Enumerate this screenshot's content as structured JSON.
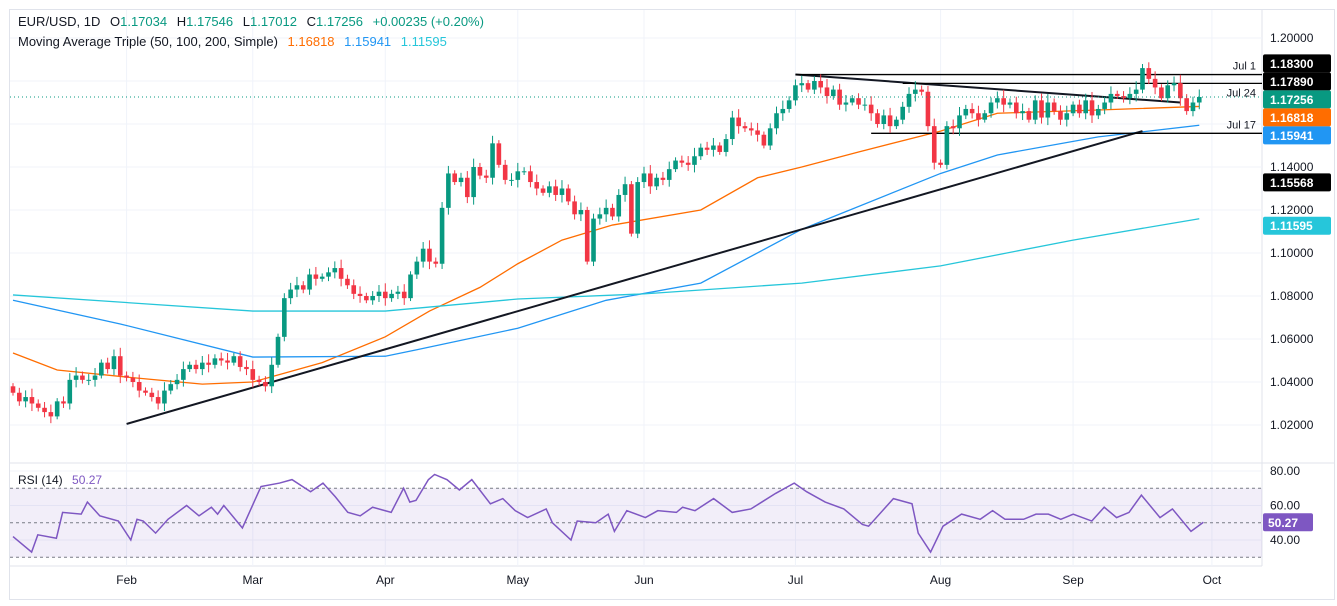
{
  "header": {
    "symbol": "EUR/USD, 1D",
    "open_label": "O",
    "open": "1.17034",
    "high_label": "H",
    "high": "1.17546",
    "low_label": "L",
    "low": "1.17012",
    "close_label": "C",
    "close": "1.17256",
    "change": "+0.00235 (+0.20%)",
    "ma_label": "Moving Average Triple (50, 100, 200, Simple)",
    "ma50": "1.16818",
    "ma100": "1.15941",
    "ma200": "1.11595"
  },
  "rsi_legend": {
    "label": "RSI (14)",
    "value": "50.27"
  },
  "colors": {
    "up": "#089981",
    "down": "#f23645",
    "ma50": "#ff6d00",
    "ma100": "#2196f3",
    "ma200": "#26c6da",
    "rsi": "#7e57c2",
    "trendline": "#131722"
  },
  "chart_data": [
    {
      "type": "candlestick",
      "title": "EUR/USD, 1D",
      "ylim": [
        1.0,
        1.21
      ],
      "grid": true,
      "y_ticks": [
        "1.20000",
        "1.14000",
        "1.12000",
        "1.10000",
        "1.08000",
        "1.06000",
        "1.04000",
        "1.02000"
      ],
      "x_months": [
        {
          "label": "Feb",
          "bar": 18
        },
        {
          "label": "Mar",
          "bar": 38
        },
        {
          "label": "Apr",
          "bar": 59
        },
        {
          "label": "May",
          "bar": 80
        },
        {
          "label": "Jun",
          "bar": 100
        },
        {
          "label": "Jul",
          "bar": 124
        },
        {
          "label": "Aug",
          "bar": 147
        },
        {
          "label": "Sep",
          "bar": 168
        },
        {
          "label": "Oct",
          "bar": 190
        }
      ],
      "first_open": 1.038,
      "closes": [
        1.035,
        1.031,
        1.033,
        1.03,
        1.028,
        1.026,
        1.024,
        1.031,
        1.03,
        1.041,
        1.043,
        1.041,
        1.041,
        1.043,
        1.049,
        1.046,
        1.052,
        1.043,
        1.042,
        1.04,
        1.036,
        1.035,
        1.033,
        1.03,
        1.036,
        1.039,
        1.041,
        1.046,
        1.048,
        1.046,
        1.049,
        1.048,
        1.051,
        1.05,
        1.049,
        1.052,
        1.047,
        1.046,
        1.041,
        1.04,
        1.038,
        1.048,
        1.061,
        1.079,
        1.083,
        1.085,
        1.083,
        1.09,
        1.088,
        1.089,
        1.091,
        1.093,
        1.088,
        1.085,
        1.081,
        1.08,
        1.078,
        1.08,
        1.082,
        1.079,
        1.081,
        1.082,
        1.079,
        1.09,
        1.096,
        1.102,
        1.096,
        1.095,
        1.121,
        1.137,
        1.133,
        1.135,
        1.126,
        1.14,
        1.136,
        1.135,
        1.151,
        1.141,
        1.134,
        1.134,
        1.138,
        1.138,
        1.133,
        1.13,
        1.128,
        1.131,
        1.127,
        1.13,
        1.124,
        1.118,
        1.12,
        1.096,
        1.116,
        1.118,
        1.121,
        1.117,
        1.127,
        1.132,
        1.109,
        1.133,
        1.137,
        1.131,
        1.135,
        1.134,
        1.139,
        1.143,
        1.142,
        1.141,
        1.145,
        1.149,
        1.148,
        1.15,
        1.147,
        1.153,
        1.163,
        1.159,
        1.158,
        1.157,
        1.155,
        1.15,
        1.158,
        1.165,
        1.167,
        1.171,
        1.178,
        1.179,
        1.176,
        1.18,
        1.177,
        1.173,
        1.176,
        1.169,
        1.17,
        1.172,
        1.169,
        1.169,
        1.165,
        1.16,
        1.164,
        1.159,
        1.162,
        1.168,
        1.174,
        1.176,
        1.175,
        1.159,
        1.142,
        1.141,
        1.159,
        1.158,
        1.164,
        1.167,
        1.165,
        1.162,
        1.165,
        1.17,
        1.172,
        1.169,
        1.17,
        1.165,
        1.166,
        1.162,
        1.171,
        1.163,
        1.17,
        1.166,
        1.162,
        1.165,
        1.169,
        1.165,
        1.171,
        1.164,
        1.167,
        1.17,
        1.174,
        1.173,
        1.172,
        1.174,
        1.176,
        1.186,
        1.181,
        1.177,
        1.172,
        1.178,
        1.179,
        1.172,
        1.166,
        1.17,
        1.17256
      ],
      "moving_averages": [
        {
          "name": "SMA 50",
          "value": "1.16818",
          "color": "#ff6d00",
          "points": [
            [
              0,
              1.0535
            ],
            [
              7,
              1.0456
            ],
            [
              18,
              1.0423
            ],
            [
              30,
              1.039
            ],
            [
              38,
              1.04
            ],
            [
              49,
              1.049
            ],
            [
              59,
              1.061
            ],
            [
              66,
              1.073
            ],
            [
              74,
              1.084
            ],
            [
              80,
              1.095
            ],
            [
              87,
              1.106
            ],
            [
              95,
              1.113
            ],
            [
              109,
              1.12
            ],
            [
              118,
              1.135
            ],
            [
              125,
              1.14
            ],
            [
              134,
              1.147
            ],
            [
              147,
              1.1567
            ],
            [
              156,
              1.165
            ],
            [
              172,
              1.1665
            ],
            [
              188,
              1.16818
            ]
          ]
        },
        {
          "name": "SMA 100",
          "value": "1.15941",
          "color": "#2196f3",
          "points": [
            [
              0,
              1.078
            ],
            [
              17,
              1.067
            ],
            [
              38,
              1.0516
            ],
            [
              59,
              1.052
            ],
            [
              64,
              1.055
            ],
            [
              80,
              1.065
            ],
            [
              94,
              1.078
            ],
            [
              109,
              1.086
            ],
            [
              125,
              1.111
            ],
            [
              147,
              1.137
            ],
            [
              156,
              1.1456
            ],
            [
              172,
              1.154
            ],
            [
              188,
              1.15941
            ]
          ]
        },
        {
          "name": "SMA 200",
          "value": "1.11595",
          "color": "#26c6da",
          "points": [
            [
              0,
              1.0805
            ],
            [
              38,
              1.073
            ],
            [
              59,
              1.073
            ],
            [
              80,
              1.0786
            ],
            [
              100,
              1.081
            ],
            [
              125,
              1.086
            ],
            [
              147,
              1.094
            ],
            [
              168,
              1.106
            ],
            [
              188,
              1.11595
            ]
          ]
        }
      ],
      "trendlines": [
        {
          "from": [
            18,
            1.0205
          ],
          "to": [
            179,
            1.1567
          ]
        },
        {
          "from": [
            124,
            1.183
          ],
          "to": [
            185,
            1.17
          ]
        }
      ],
      "levels": [
        {
          "label": "Jul 1",
          "price": 1.183,
          "tag": "1.18300",
          "from_bar": 124
        },
        {
          "label": "Jul 24",
          "price": 1.1789,
          "tag": "1.17890",
          "from_bar": 141
        },
        {
          "label": "Jul 17",
          "price": 1.15568,
          "tag": "1.15568",
          "from_bar": 136
        }
      ],
      "price_tags": [
        {
          "value": "1.17256",
          "price": 1.17256,
          "color": "#089981"
        },
        {
          "value": "1.16818",
          "price": 1.16818,
          "color": "#ff6d00"
        },
        {
          "value": "1.15941",
          "price": 1.15941,
          "color": "#2196f3"
        },
        {
          "value": "1.11595",
          "price": 1.11595,
          "color": "#26c6da"
        }
      ]
    },
    {
      "type": "line",
      "title": "RSI (14)",
      "ylim": [
        25,
        85
      ],
      "y_ticks": [
        "80.00",
        "60.00",
        "40.00"
      ],
      "bands": [
        30,
        50,
        70
      ],
      "last_value": "50.27",
      "points": [
        [
          0,
          42
        ],
        [
          3,
          33
        ],
        [
          4,
          43
        ],
        [
          7,
          41
        ],
        [
          8,
          56
        ],
        [
          11,
          55
        ],
        [
          12,
          62
        ],
        [
          14,
          54
        ],
        [
          17,
          51
        ],
        [
          19,
          40
        ],
        [
          20,
          52
        ],
        [
          21,
          51
        ],
        [
          23,
          44
        ],
        [
          25,
          52
        ],
        [
          28,
          60
        ],
        [
          30,
          54
        ],
        [
          32,
          59
        ],
        [
          33,
          55
        ],
        [
          34,
          60
        ],
        [
          37,
          47
        ],
        [
          40,
          71
        ],
        [
          43,
          73
        ],
        [
          45,
          75
        ],
        [
          48,
          68
        ],
        [
          50,
          73
        ],
        [
          52,
          65
        ],
        [
          54,
          56
        ],
        [
          56,
          54
        ],
        [
          58,
          59
        ],
        [
          61,
          56
        ],
        [
          63,
          70
        ],
        [
          64,
          62
        ],
        [
          65,
          63
        ],
        [
          67,
          75
        ],
        [
          68,
          78
        ],
        [
          70,
          75
        ],
        [
          72,
          69
        ],
        [
          74,
          75
        ],
        [
          77,
          61
        ],
        [
          79,
          64
        ],
        [
          81,
          57
        ],
        [
          83,
          53
        ],
        [
          86,
          58
        ],
        [
          87,
          50
        ],
        [
          90,
          40
        ],
        [
          91,
          51
        ],
        [
          94,
          50
        ],
        [
          96,
          55
        ],
        [
          97,
          45
        ],
        [
          99,
          57
        ],
        [
          102,
          53
        ],
        [
          104,
          57
        ],
        [
          107,
          56
        ],
        [
          108,
          59
        ],
        [
          110,
          57
        ],
        [
          113,
          64
        ],
        [
          116,
          56
        ],
        [
          119,
          58
        ],
        [
          123,
          67
        ],
        [
          126,
          73
        ],
        [
          128,
          68
        ],
        [
          131,
          62
        ],
        [
          134,
          58
        ],
        [
          137,
          49
        ],
        [
          138,
          48
        ],
        [
          142,
          64
        ],
        [
          145,
          61
        ],
        [
          146,
          44
        ],
        [
          148,
          33
        ],
        [
          150,
          48
        ],
        [
          153,
          55
        ],
        [
          156,
          52
        ],
        [
          158,
          57
        ],
        [
          160,
          52
        ],
        [
          163,
          52
        ],
        [
          165,
          55
        ],
        [
          167,
          55
        ],
        [
          169,
          52
        ],
        [
          171,
          55
        ],
        [
          174,
          51
        ],
        [
          176,
          59
        ],
        [
          178,
          53
        ],
        [
          180,
          56
        ],
        [
          182,
          66
        ],
        [
          185,
          53
        ],
        [
          187,
          58
        ],
        [
          190,
          45
        ],
        [
          192,
          50.27
        ]
      ]
    }
  ]
}
